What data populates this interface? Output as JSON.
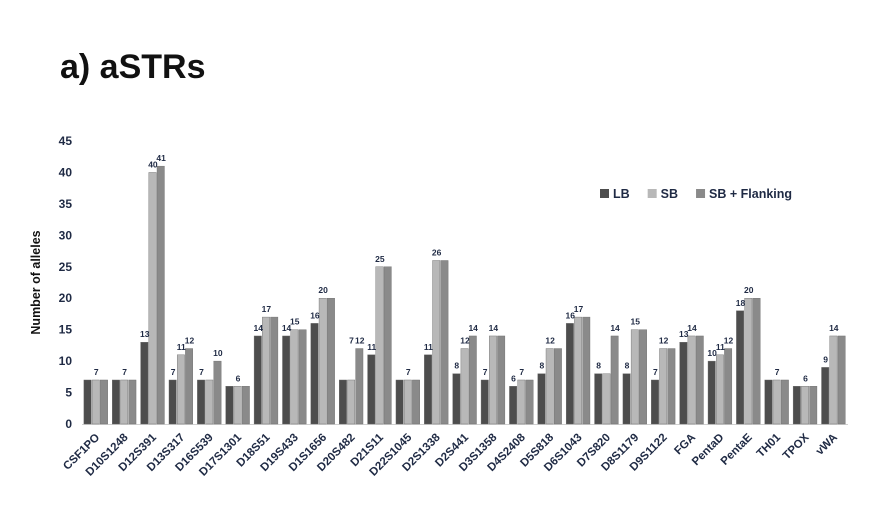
{
  "chart_data": {
    "type": "bar",
    "title": "a) aSTRs",
    "ylabel": "Number of alleles",
    "xlabel": "",
    "ylim": [
      0,
      45
    ],
    "yticks": [
      0,
      5,
      10,
      15,
      20,
      25,
      30,
      35,
      40,
      45
    ],
    "grid": false,
    "legend_position": "top-right",
    "categories": [
      "CSF1PO",
      "D10S1248",
      "D12S391",
      "D13S317",
      "D16S539",
      "D17S1301",
      "D18S51",
      "D19S433",
      "D1S1656",
      "D20S482",
      "D21S11",
      "D22S1045",
      "D2S1338",
      "D2S441",
      "D3S1358",
      "D4S2408",
      "D5S818",
      "D6S1043",
      "D7S820",
      "D8S1179",
      "D9S1122",
      "FGA",
      "PentaD",
      "PentaE",
      "TH01",
      "TPOX",
      "vWA"
    ],
    "series": [
      {
        "name": "LB",
        "color": "#4d4d4d",
        "values": [
          7,
          7,
          13,
          7,
          7,
          6,
          14,
          14,
          16,
          7,
          11,
          7,
          11,
          8,
          7,
          6,
          8,
          16,
          8,
          8,
          7,
          13,
          10,
          18,
          7,
          6,
          9
        ]
      },
      {
        "name": "SB",
        "color": "#b8b8b8",
        "values": [
          7,
          7,
          40,
          11,
          7,
          6,
          17,
          15,
          20,
          7,
          25,
          7,
          26,
          12,
          14,
          7,
          12,
          17,
          8,
          15,
          12,
          14,
          11,
          20,
          7,
          6,
          14
        ]
      },
      {
        "name": "SB + Flanking",
        "color": "#8a8a8a",
        "values": [
          7,
          7,
          41,
          12,
          10,
          6,
          17,
          15,
          20,
          12,
          25,
          7,
          26,
          14,
          14,
          7,
          12,
          17,
          14,
          15,
          12,
          14,
          12,
          20,
          7,
          6,
          14
        ]
      }
    ],
    "data_labels": [
      {
        "category_index": 0,
        "text": "7"
      },
      {
        "category_index": 1,
        "text": "7"
      },
      {
        "category_index": 2,
        "text": "13",
        "series_index": 0
      },
      {
        "category_index": 2,
        "text": "40",
        "series_index": 1
      },
      {
        "category_index": 2,
        "text": "41",
        "series_index": 2
      },
      {
        "category_index": 3,
        "text": "7",
        "series_index": 0
      },
      {
        "category_index": 3,
        "text": "11",
        "series_index": 1
      },
      {
        "category_index": 3,
        "text": "12",
        "series_index": 2
      },
      {
        "category_index": 4,
        "text": "7",
        "series_index": 0
      },
      {
        "category_index": 4,
        "text": "10",
        "series_index": 2
      },
      {
        "category_index": 5,
        "text": "6"
      },
      {
        "category_index": 6,
        "text": "14",
        "series_index": 0
      },
      {
        "category_index": 6,
        "text": "17"
      },
      {
        "category_index": 7,
        "text": "14",
        "series_index": 0
      },
      {
        "category_index": 7,
        "text": "15"
      },
      {
        "category_index": 8,
        "text": "16",
        "series_index": 0
      },
      {
        "category_index": 8,
        "text": "20"
      },
      {
        "category_index": 9,
        "text": "7"
      },
      {
        "category_index": 9,
        "text": "12",
        "series_index": 2
      },
      {
        "category_index": 10,
        "text": "11",
        "series_index": 0
      },
      {
        "category_index": 10,
        "text": "25"
      },
      {
        "category_index": 11,
        "text": "7"
      },
      {
        "category_index": 12,
        "text": "11",
        "series_index": 0
      },
      {
        "category_index": 12,
        "text": "26"
      },
      {
        "category_index": 13,
        "text": "8",
        "series_index": 0
      },
      {
        "category_index": 13,
        "text": "12",
        "series_index": 1
      },
      {
        "category_index": 13,
        "text": "14",
        "series_index": 2
      },
      {
        "category_index": 14,
        "text": "7",
        "series_index": 0
      },
      {
        "category_index": 14,
        "text": "14"
      },
      {
        "category_index": 15,
        "text": "6",
        "series_index": 0
      },
      {
        "category_index": 15,
        "text": "7"
      },
      {
        "category_index": 16,
        "text": "8",
        "series_index": 0
      },
      {
        "category_index": 16,
        "text": "12"
      },
      {
        "category_index": 17,
        "text": "16",
        "series_index": 0
      },
      {
        "category_index": 17,
        "text": "17"
      },
      {
        "category_index": 18,
        "text": "8",
        "series_index": 0
      },
      {
        "category_index": 18,
        "text": "14",
        "series_index": 2
      },
      {
        "category_index": 19,
        "text": "8",
        "series_index": 0
      },
      {
        "category_index": 19,
        "text": "15"
      },
      {
        "category_index": 20,
        "text": "7",
        "series_index": 0
      },
      {
        "category_index": 20,
        "text": "12"
      },
      {
        "category_index": 21,
        "text": "13",
        "series_index": 0
      },
      {
        "category_index": 21,
        "text": "14"
      },
      {
        "category_index": 22,
        "text": "10",
        "series_index": 0
      },
      {
        "category_index": 22,
        "text": "11",
        "series_index": 1
      },
      {
        "category_index": 22,
        "text": "12",
        "series_index": 2
      },
      {
        "category_index": 23,
        "text": "18",
        "series_index": 0
      },
      {
        "category_index": 23,
        "text": "20"
      },
      {
        "category_index": 24,
        "text": "7"
      },
      {
        "category_index": 25,
        "text": "6"
      },
      {
        "category_index": 26,
        "text": "9",
        "series_index": 0
      },
      {
        "category_index": 26,
        "text": "14"
      }
    ]
  }
}
